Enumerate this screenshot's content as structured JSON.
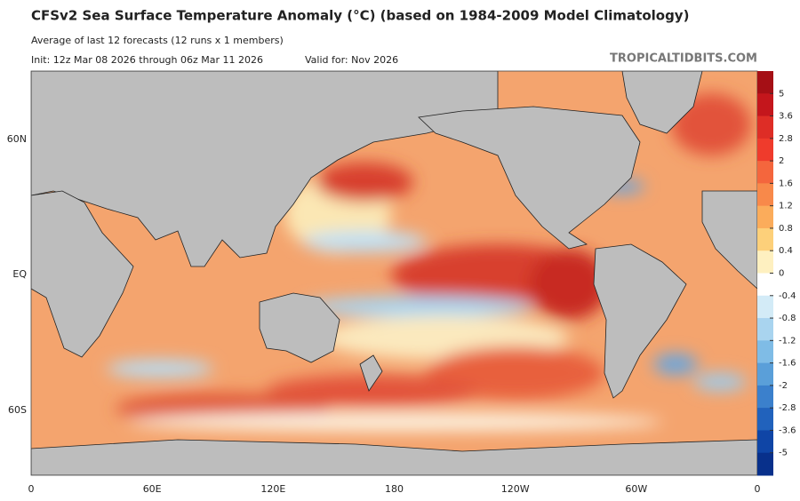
{
  "header": {
    "title": "CFSv2 Sea Surface Temperature Anomaly (°C) (based on 1984-2009 Model Climatology)",
    "subtitle": "Average of last 12 forecasts (12 runs x 1 members)",
    "init": "Init: 12z Mar 08 2026 through 06z Mar 11 2026",
    "valid": "Valid for: Nov 2026",
    "source": "TROPICALTIDBITS.COM"
  },
  "map": {
    "lat_labels": [
      "60N",
      "EQ",
      "60S"
    ],
    "lon_labels": [
      "0",
      "60E",
      "120E",
      "180",
      "120W",
      "60W",
      "0"
    ]
  },
  "colorbar": {
    "ticks": [
      5,
      3.6,
      2.8,
      2,
      1.6,
      1.2,
      0.8,
      0.4,
      0,
      -0.4,
      -0.8,
      -1.2,
      -1.6,
      -2,
      -2.8,
      -3.6,
      -5
    ]
  }
}
